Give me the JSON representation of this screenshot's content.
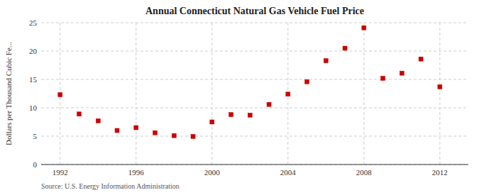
{
  "chart_data": {
    "type": "scatter",
    "title": "Annual Connecticut Natural Gas Vehicle Fuel Price",
    "y_label": "Dollars per Thousand Cubic Fe...",
    "source": "Source: U.S. Energy Information Administration",
    "x": [
      1992,
      1993,
      1994,
      1995,
      1996,
      1997,
      1998,
      1999,
      2000,
      2001,
      2002,
      2003,
      2004,
      2005,
      2006,
      2007,
      2008,
      2009,
      2010,
      2011,
      2012
    ],
    "values": [
      12.3,
      8.9,
      7.7,
      6.0,
      6.5,
      5.6,
      5.1,
      4.95,
      7.5,
      8.8,
      8.7,
      10.6,
      12.4,
      14.6,
      18.3,
      20.5,
      24.1,
      15.2,
      16.1,
      18.6,
      13.7
    ],
    "color": "#cc0000",
    "marker": "square",
    "xlim": [
      1991.0,
      2013.5
    ],
    "ylim": [
      0,
      25
    ],
    "xticks": [
      1992,
      1996,
      2000,
      2004,
      2008,
      2012
    ],
    "yticks": [
      0,
      5,
      10,
      15,
      20,
      25
    ],
    "grid": true
  }
}
